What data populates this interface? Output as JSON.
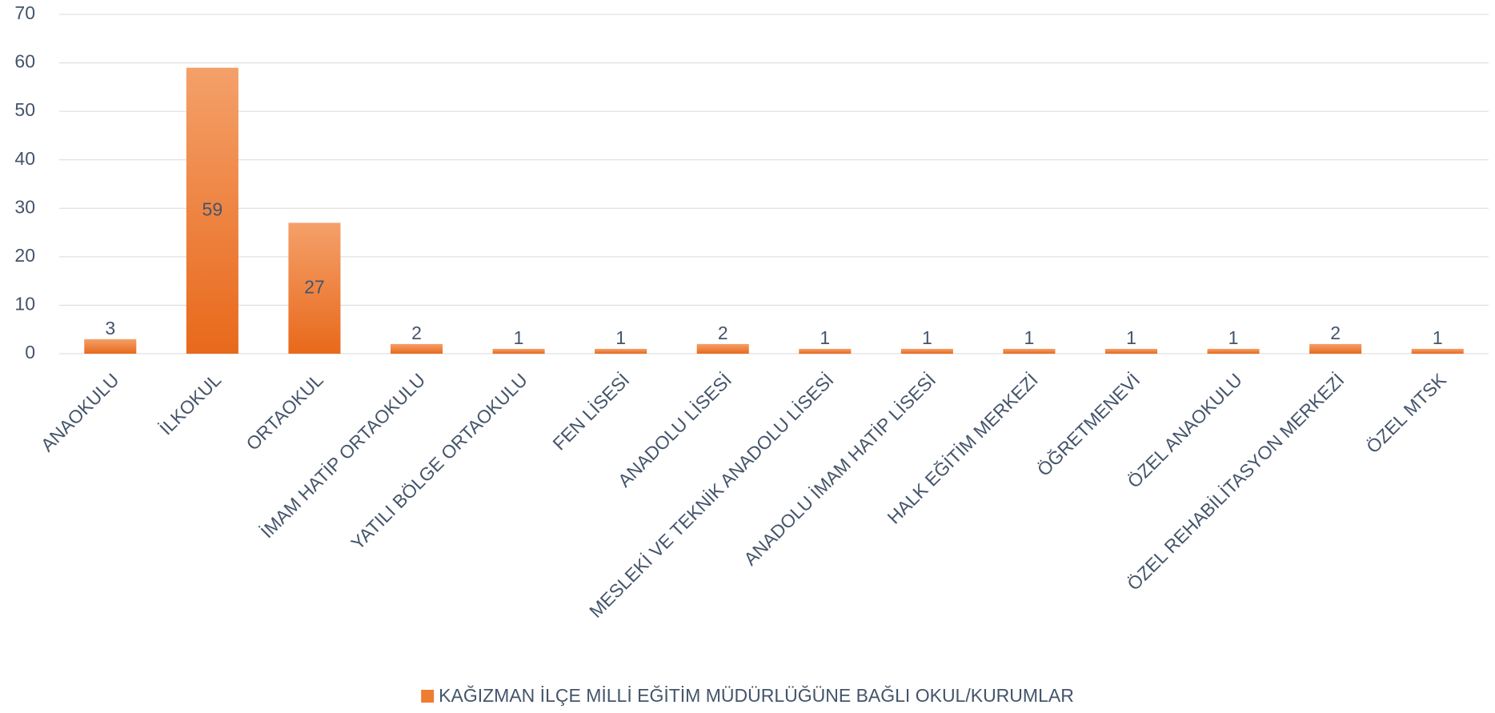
{
  "chart_data": {
    "type": "bar",
    "categories": [
      "ANAOKULU",
      "İLKOKUL",
      "ORTAOKUL",
      "İMAM HATİP ORTAOKULU",
      "YATILI BÖLGE ORTAOKULU",
      "FEN LİSESİ",
      "ANADOLU LİSESİ",
      "MESLEKİ VE TEKNİK ANADOLU LİSESİ",
      "ANADOLU İMAM HATİP LİSESİ",
      "HALK EĞİTİM MERKEZİ",
      "ÖĞRETMENEVİ",
      "ÖZEL ANAOKULU",
      "ÖZEL REHABİLİTASYON MERKEZİ",
      "ÖZEL MTSK"
    ],
    "series": [
      {
        "name": "KAĞIZMAN İLÇE MİLLİ EĞİTİM MÜDÜRLÜĞÜNE BAĞLI OKUL/KURUMLAR",
        "color": "#ed7d31",
        "values": [
          3,
          59,
          27,
          2,
          1,
          1,
          2,
          1,
          1,
          1,
          1,
          1,
          2,
          1
        ]
      }
    ],
    "ylim": [
      0,
      70
    ],
    "yticks": [
      0,
      10,
      20,
      30,
      40,
      50,
      60,
      70
    ],
    "grid": true,
    "legend": "bottom"
  }
}
